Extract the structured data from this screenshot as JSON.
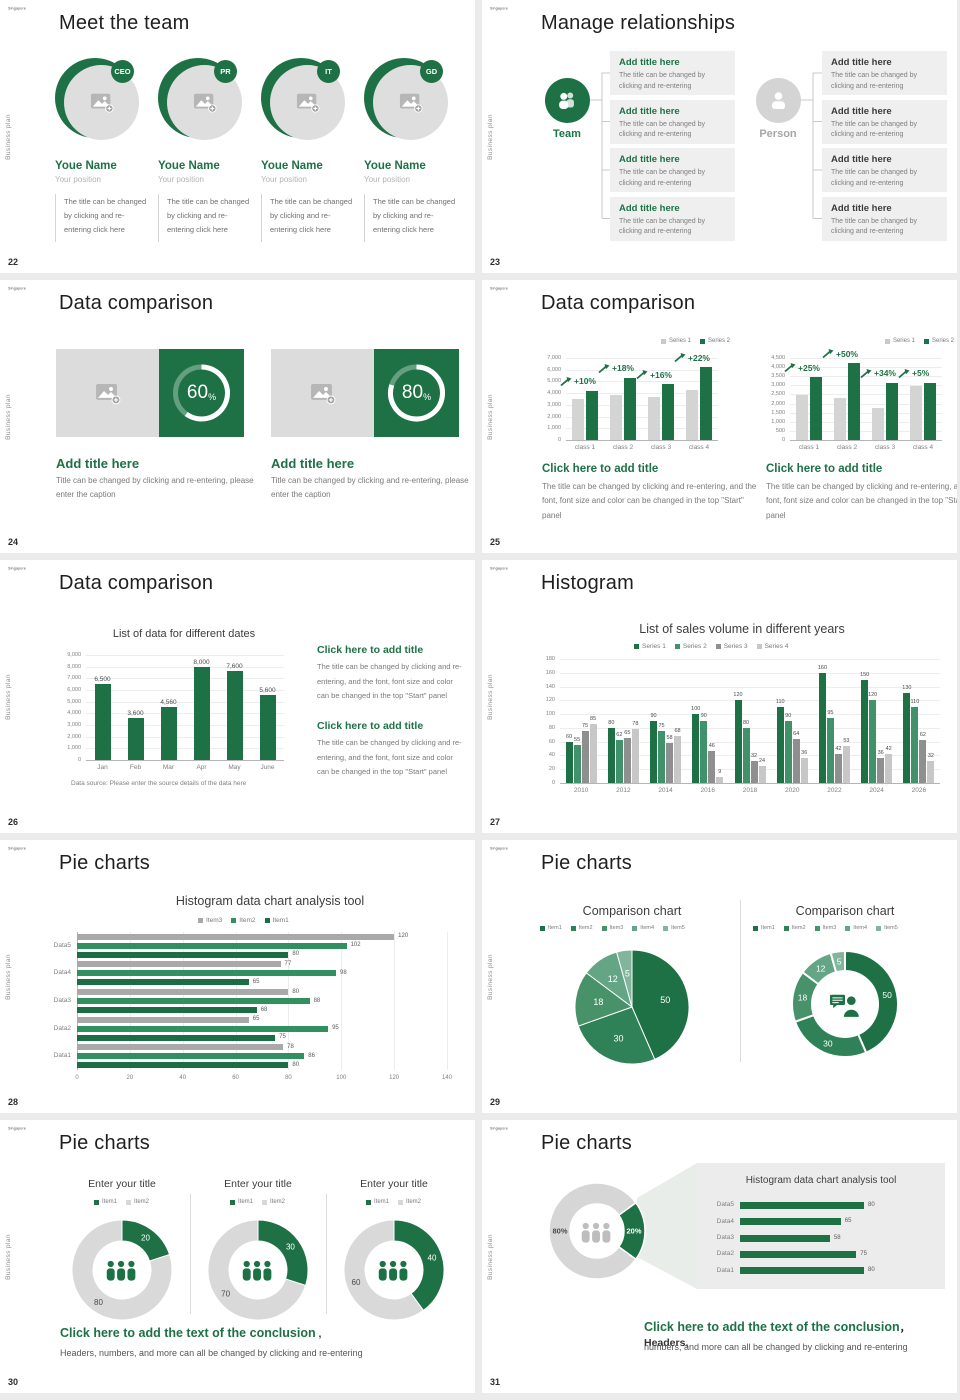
{
  "brand": {
    "logo_text": "Singapore",
    "sidebar_text": "Business plan"
  },
  "colors": {
    "primary_green": "#1e7145",
    "series_green_mid": "#41926b",
    "item1_green": "#1b6d44",
    "item2_green": "#31905f",
    "item3_gray": "#a9a9a9",
    "series3_gray": "#8f8f8f",
    "series4_gray": "#c7c7c7",
    "bar_gray": "#d4d4d4",
    "placeholder_gray": "#dcdcdc",
    "box_gray": "#efefef",
    "donut_gray": "#d8d8d8",
    "pie_greens": [
      "#1e7145",
      "#2f8257",
      "#479268",
      "#63a584",
      "#82b59c"
    ]
  },
  "slides": {
    "s22": {
      "number": "22",
      "title": "Meet the team",
      "members": [
        {
          "badge": "CEO",
          "name": "Youe Name",
          "position": "Your position",
          "desc": "The title can be changed by clicking and re-entering click here"
        },
        {
          "badge": "PR",
          "name": "Youe Name",
          "position": "Your position",
          "desc": "The title can be changed by clicking and re-entering click here"
        },
        {
          "badge": "IT",
          "name": "Youe Name",
          "position": "Your position",
          "desc": "The title can be changed by clicking and re-entering click here"
        },
        {
          "badge": "GD",
          "name": "Youe Name",
          "position": "Your position",
          "desc": "The title can be changed by clicking and re-entering click here"
        }
      ]
    },
    "s23": {
      "number": "23",
      "title": "Manage relationships",
      "team_label": "Team",
      "person_label": "Person",
      "box_title": "Add title here",
      "box_desc": "The title can be changed by clicking and re-entering",
      "left_count": 4,
      "right_count": 4
    },
    "s24": {
      "number": "24",
      "title": "Data comparison",
      "cards": [
        {
          "percent": 60,
          "title": "Add title here",
          "desc": "Title can be changed by clicking and re-entering, please enter the caption"
        },
        {
          "percent": 80,
          "title": "Add title here",
          "desc": "Title can be changed by clicking and re-entering, please enter the caption"
        }
      ]
    },
    "s25": {
      "number": "25",
      "title": "Data comparison",
      "panels": [
        {
          "caption_title": "Click here to add title",
          "caption": "The title can be changed by clicking and re-entering, and the font, font size and color can be changed in the top \"Start\" panel"
        },
        {
          "caption_title": "Click here to add title",
          "caption": "The title can be changed by clicking and re-entering, and the font, font size and color can be changed in the top \"Start\" panel"
        }
      ]
    },
    "s26": {
      "number": "26",
      "title": "Data comparison",
      "captions": [
        {
          "title": "Click here to add title",
          "text": "The title can be changed by clicking and re-entering, and the font, font size and color can be changed in the top \"Start\" panel"
        },
        {
          "title": "Click here to add title",
          "text": "The title can be changed by clicking and re-entering, and the font, font size and color can be changed in the top \"Start\" panel"
        }
      ]
    },
    "s27": {
      "number": "27",
      "title": "Histogram"
    },
    "s28": {
      "number": "28",
      "title": "Pie charts"
    },
    "s29": {
      "number": "29",
      "title": "Pie charts"
    },
    "s30": {
      "number": "30",
      "title": "Pie charts",
      "conclusion_title": "Click here to add the text of the conclusion",
      "conclusion_comma": " ,",
      "conclusion_text": "Headers, numbers, and more can all be changed by clicking and re-entering"
    },
    "s31": {
      "number": "31",
      "title": "Pie charts",
      "conclusion_title": "Click here to add the text of the conclusion",
      "conclusion_comma": "， Headers,",
      "conclusion_text": "numbers, and more can all be changed by clicking and re-entering"
    }
  },
  "chart_data": [
    {
      "id": "s25-left",
      "slide": "25",
      "type": "bar",
      "categories": [
        "class 1",
        "class 2",
        "class 3",
        "class 4"
      ],
      "series": [
        {
          "name": "Series 1",
          "values": [
            3500,
            3800,
            3650,
            4300
          ]
        },
        {
          "name": "Series 2",
          "values": [
            4200,
            5300,
            4750,
            6200
          ]
        }
      ],
      "annotations": [
        "+10%",
        "+18%",
        "+16%",
        "+22%"
      ],
      "ylim": [
        0,
        7000
      ],
      "ytick": 1000,
      "grid": true,
      "legend_position": "top-right"
    },
    {
      "id": "s25-right",
      "slide": "25",
      "type": "bar",
      "categories": [
        "class 1",
        "class 2",
        "class 3",
        "class 4"
      ],
      "series": [
        {
          "name": "Series 1",
          "values": [
            2450,
            2300,
            1780,
            2950
          ]
        },
        {
          "name": "Series 2",
          "values": [
            3450,
            4200,
            3150,
            3150
          ]
        }
      ],
      "annotations": [
        "+25%",
        "+50%",
        "+34%",
        "+5%"
      ],
      "ylim": [
        0,
        4500
      ],
      "ytick": 500,
      "grid": true,
      "legend_position": "top-right"
    },
    {
      "id": "s26",
      "slide": "26",
      "type": "bar",
      "title": "List of data for different dates",
      "categories": [
        "Jan",
        "Feb",
        "Mar",
        "Apr",
        "May",
        "June"
      ],
      "values": [
        6500,
        3600,
        4560,
        8000,
        7600,
        5600
      ],
      "data_labels": [
        "6,500",
        "3,600",
        "4,560",
        "8,000",
        "7,600",
        "5,600"
      ],
      "ylim": [
        0,
        9000
      ],
      "ytick": 1000,
      "grid": true,
      "source_note": "Data source: Please enter the source details of the data here"
    },
    {
      "id": "s27",
      "slide": "27",
      "type": "bar",
      "title": "List of sales volume in different years",
      "categories": [
        "2010",
        "2012",
        "2014",
        "2016",
        "2018",
        "2020",
        "2022",
        "2024",
        "2026"
      ],
      "series": [
        {
          "name": "Series 1",
          "values": [
            60,
            80,
            90,
            100,
            120,
            110,
            160,
            150,
            130
          ]
        },
        {
          "name": "Series 2",
          "values": [
            55,
            62,
            75,
            90,
            80,
            90,
            95,
            120,
            110
          ]
        },
        {
          "name": "Series 3",
          "values": [
            75,
            65,
            58,
            46,
            32,
            64,
            42,
            36,
            62
          ]
        },
        {
          "name": "Series 4",
          "values": [
            85,
            78,
            68,
            9,
            24,
            36,
            53,
            42,
            32
          ]
        }
      ],
      "ylim": [
        0,
        180
      ],
      "ytick": 20,
      "grid": true,
      "legend_position": "top-center"
    },
    {
      "id": "s28",
      "slide": "28",
      "type": "bar-horizontal",
      "title": "Histogram data chart analysis tool",
      "categories": [
        "Data5",
        "Data4",
        "Data3",
        "Data2",
        "Data1"
      ],
      "series": [
        {
          "name": "Item3",
          "values": [
            120,
            77,
            80,
            65,
            78
          ]
        },
        {
          "name": "Item2",
          "values": [
            102,
            98,
            88,
            95,
            86
          ]
        },
        {
          "name": "Item1",
          "values": [
            80,
            65,
            68,
            75,
            80
          ]
        }
      ],
      "xlim": [
        0,
        140
      ],
      "xtick": 20,
      "grid": true,
      "legend_position": "top-center"
    },
    {
      "id": "s29-left",
      "slide": "29",
      "type": "pie",
      "title": "Comparison chart",
      "legend": [
        "Item1",
        "Item2",
        "Item3",
        "Item4",
        "Item5"
      ],
      "values": [
        50,
        30,
        18,
        12,
        5
      ]
    },
    {
      "id": "s29-right",
      "slide": "29",
      "type": "donut",
      "title": "Comparison chart",
      "legend": [
        "Item1",
        "Item2",
        "Item3",
        "Item4",
        "Item5"
      ],
      "values": [
        50,
        30,
        18,
        12,
        5
      ]
    },
    {
      "id": "s30-1",
      "slide": "30",
      "type": "donut",
      "title": "Enter your title",
      "legend": [
        "Item1",
        "Item2"
      ],
      "values": [
        20,
        80
      ]
    },
    {
      "id": "s30-2",
      "slide": "30",
      "type": "donut",
      "title": "Enter your title",
      "legend": [
        "Item1",
        "Item2"
      ],
      "values": [
        30,
        70
      ]
    },
    {
      "id": "s30-3",
      "slide": "30",
      "type": "donut",
      "title": "Enter your title",
      "legend": [
        "Item1",
        "Item2"
      ],
      "values": [
        40,
        60
      ]
    },
    {
      "id": "s31-donut",
      "slide": "31",
      "type": "donut",
      "values": [
        20,
        80
      ],
      "labels": [
        "20%",
        "80%"
      ]
    },
    {
      "id": "s31-bars",
      "slide": "31",
      "type": "bar-horizontal",
      "title": "Histogram data chart analysis tool",
      "categories": [
        "Data5",
        "Data4",
        "Data3",
        "Data2",
        "Data1"
      ],
      "values": [
        80,
        65,
        58,
        75,
        80
      ]
    }
  ]
}
